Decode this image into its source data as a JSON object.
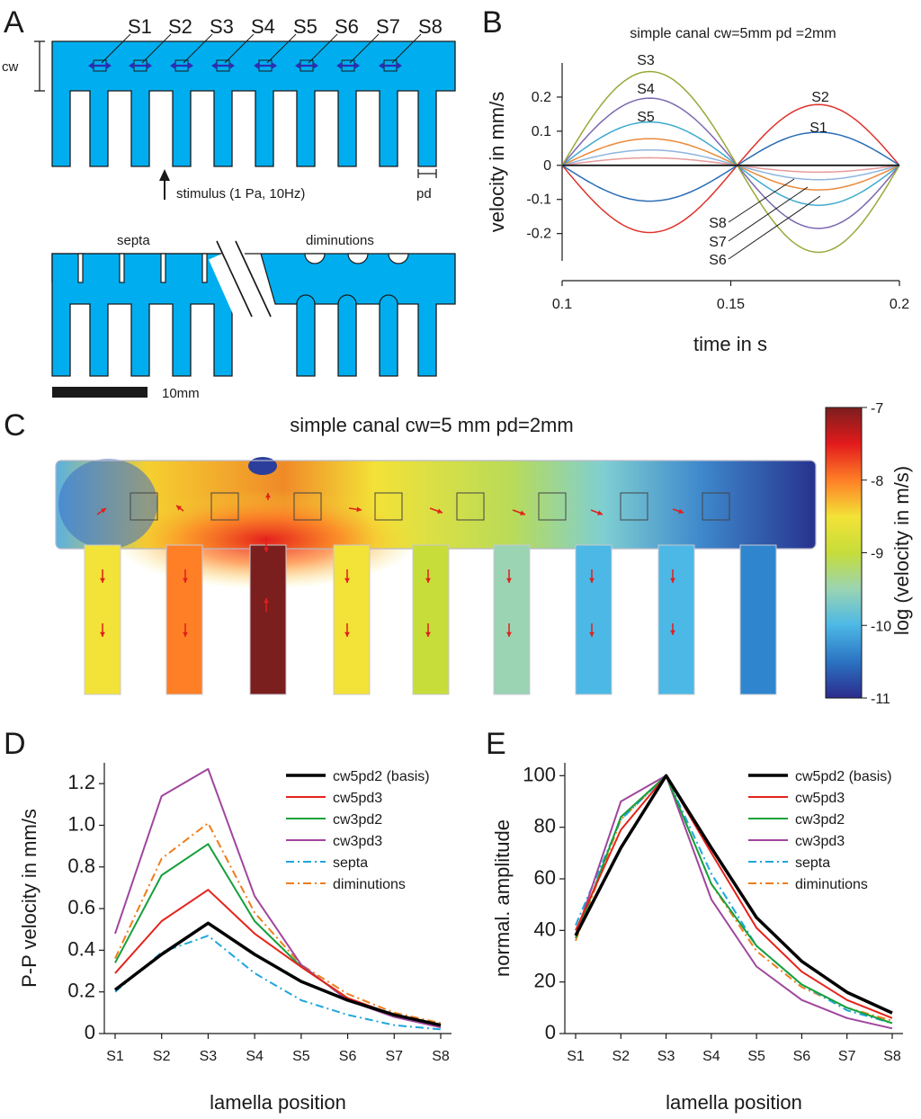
{
  "panels": {
    "A": {
      "letter": "A",
      "sensor_labels": [
        "S1",
        "S2",
        "S3",
        "S4",
        "S5",
        "S6",
        "S7",
        "S8"
      ],
      "cw_label": "cw",
      "pd_label": "pd",
      "stimulus_label": "stimulus (1 Pa, 10Hz)",
      "septa_label": "septa",
      "diminutions_label": "diminutions",
      "scale_label": "10mm"
    },
    "B": {
      "letter": "B"
    },
    "C": {
      "letter": "C",
      "title": "simple canal cw=5 mm pd=2mm",
      "colorbar_label": "log (velocity in m/s)",
      "colorbar_ticks": [
        "-7",
        "-8",
        "-9",
        "-10",
        "-11"
      ],
      "colorbar_stops": [
        "#7b1e1e",
        "#e31a1c",
        "#ff7f27",
        "#f3e237",
        "#c6dd3a",
        "#9ad4b3",
        "#4cb8e6",
        "#2b73c2",
        "#2b2b8c"
      ],
      "lamella_log_velocity": [
        -8.3,
        -8.0,
        -7.0,
        -8.4,
        -8.9,
        -9.4,
        -9.8,
        -10.1
      ]
    },
    "D": {
      "letter": "D"
    },
    "E": {
      "letter": "E"
    }
  },
  "chart_data": [
    {
      "id": "B",
      "type": "line",
      "title": "simple canal cw=5mm pd =2mm",
      "xlabel": "time in s",
      "ylabel": "velocity in mm/s",
      "xlim": [
        0.1,
        0.2
      ],
      "ylim": [
        -0.28,
        0.3
      ],
      "xticks": [
        0.1,
        0.15,
        0.2
      ],
      "xtick_labels": [
        "0.1",
        "0.15",
        "0.2"
      ],
      "yticks": [
        0.2,
        0.1,
        0,
        -0.1,
        -0.2
      ],
      "ytick_labels": [
        "0.2",
        "0.1",
        "0",
        "-0.1",
        "-0.2"
      ],
      "grid": false,
      "series": [
        {
          "name": "S1",
          "amp1": -0.105,
          "amp2": 0.097,
          "color": "#2a6db5"
        },
        {
          "name": "S2",
          "amp1": -0.197,
          "amp2": 0.178,
          "color": "#e0312b"
        },
        {
          "name": "S3",
          "amp1": 0.275,
          "amp2": -0.255,
          "color": "#9aa83a"
        },
        {
          "name": "S4",
          "amp1": 0.197,
          "amp2": -0.185,
          "color": "#7b68b0"
        },
        {
          "name": "S5",
          "amp1": 0.127,
          "amp2": -0.117,
          "color": "#3fa9cf"
        },
        {
          "name": "S6",
          "amp1": 0.078,
          "amp2": -0.072,
          "color": "#ea8a3a"
        },
        {
          "name": "S7",
          "amp1": 0.045,
          "amp2": -0.042,
          "color": "#8fb5de"
        },
        {
          "name": "S8",
          "amp1": 0.022,
          "amp2": -0.02,
          "color": "#e89a9a"
        }
      ],
      "annotations": [
        "S3",
        "S4",
        "S5",
        "S2",
        "S1",
        "S8",
        "S7",
        "S6"
      ]
    },
    {
      "id": "D",
      "type": "line",
      "xlabel": "lamella position",
      "ylabel": "P-P velocity in mm/s",
      "categories": [
        "S1",
        "S2",
        "S3",
        "S4",
        "S5",
        "S6",
        "S7",
        "S8"
      ],
      "ylim": [
        0,
        1.3
      ],
      "yticks": [
        0,
        0.2,
        0.4,
        0.6,
        0.8,
        1.0,
        1.2
      ],
      "ytick_labels": [
        "0",
        "0.2",
        "0.4",
        "0.6",
        "0.8",
        "1.0",
        "1.2"
      ],
      "grid": false,
      "legend": "top-right",
      "series": [
        {
          "name": "cw5pd2 (basis)",
          "color": "#000000",
          "width": 3.5,
          "dash": "",
          "values": [
            0.21,
            0.38,
            0.53,
            0.38,
            0.25,
            0.16,
            0.09,
            0.04
          ]
        },
        {
          "name": "cw5pd3",
          "color": "#e5231b",
          "width": 2,
          "dash": "",
          "values": [
            0.29,
            0.54,
            0.69,
            0.48,
            0.32,
            0.17,
            0.09,
            0.04
          ]
        },
        {
          "name": "cw3pd2",
          "color": "#16a03c",
          "width": 2,
          "dash": "",
          "values": [
            0.34,
            0.76,
            0.91,
            0.54,
            0.32,
            0.17,
            0.09,
            0.04
          ]
        },
        {
          "name": "cw3pd3",
          "color": "#a0469e",
          "width": 2,
          "dash": "",
          "values": [
            0.48,
            1.14,
            1.27,
            0.66,
            0.33,
            0.16,
            0.08,
            0.03
          ]
        },
        {
          "name": "septa",
          "color": "#1fa6dc",
          "width": 2,
          "dash": "9,4,2,4",
          "values": [
            0.2,
            0.39,
            0.47,
            0.29,
            0.16,
            0.09,
            0.04,
            0.02
          ]
        },
        {
          "name": "diminutions",
          "color": "#ef7d1a",
          "width": 2,
          "dash": "9,4,2,4",
          "values": [
            0.36,
            0.84,
            1.01,
            0.58,
            0.33,
            0.19,
            0.1,
            0.05
          ]
        }
      ]
    },
    {
      "id": "E",
      "type": "line",
      "xlabel": "lamella position",
      "ylabel": "normal. amplitude",
      "categories": [
        "S1",
        "S2",
        "S3",
        "S4",
        "S5",
        "S6",
        "S7",
        "S8"
      ],
      "ylim": [
        0,
        105
      ],
      "yticks": [
        0,
        20,
        40,
        60,
        80,
        100
      ],
      "ytick_labels": [
        "0",
        "20",
        "40",
        "60",
        "80",
        "100"
      ],
      "grid": false,
      "legend": "top-right",
      "series": [
        {
          "name": "cw5pd2 (basis)",
          "color": "#000000",
          "width": 3.5,
          "dash": "",
          "values": [
            38,
            72,
            100,
            72,
            45,
            28,
            16,
            8
          ]
        },
        {
          "name": "cw5pd3",
          "color": "#e5231b",
          "width": 2,
          "dash": "",
          "values": [
            40,
            79,
            100,
            70,
            41,
            24,
            13,
            6
          ]
        },
        {
          "name": "cw3pd2",
          "color": "#16a03c",
          "width": 2,
          "dash": "",
          "values": [
            37,
            84,
            100,
            58,
            34,
            19,
            10,
            4
          ]
        },
        {
          "name": "cw3pd3",
          "color": "#a0469e",
          "width": 2,
          "dash": "",
          "values": [
            38,
            90,
            100,
            52,
            26,
            13,
            6,
            2
          ]
        },
        {
          "name": "septa",
          "color": "#1fa6dc",
          "width": 2,
          "dash": "9,4,2,4",
          "values": [
            42,
            83,
            100,
            62,
            34,
            19,
            9,
            4
          ]
        },
        {
          "name": "diminutions",
          "color": "#ef7d1a",
          "width": 2,
          "dash": "9,4,2,4",
          "values": [
            36,
            83,
            100,
            58,
            32,
            18,
            10,
            5
          ]
        }
      ]
    }
  ]
}
